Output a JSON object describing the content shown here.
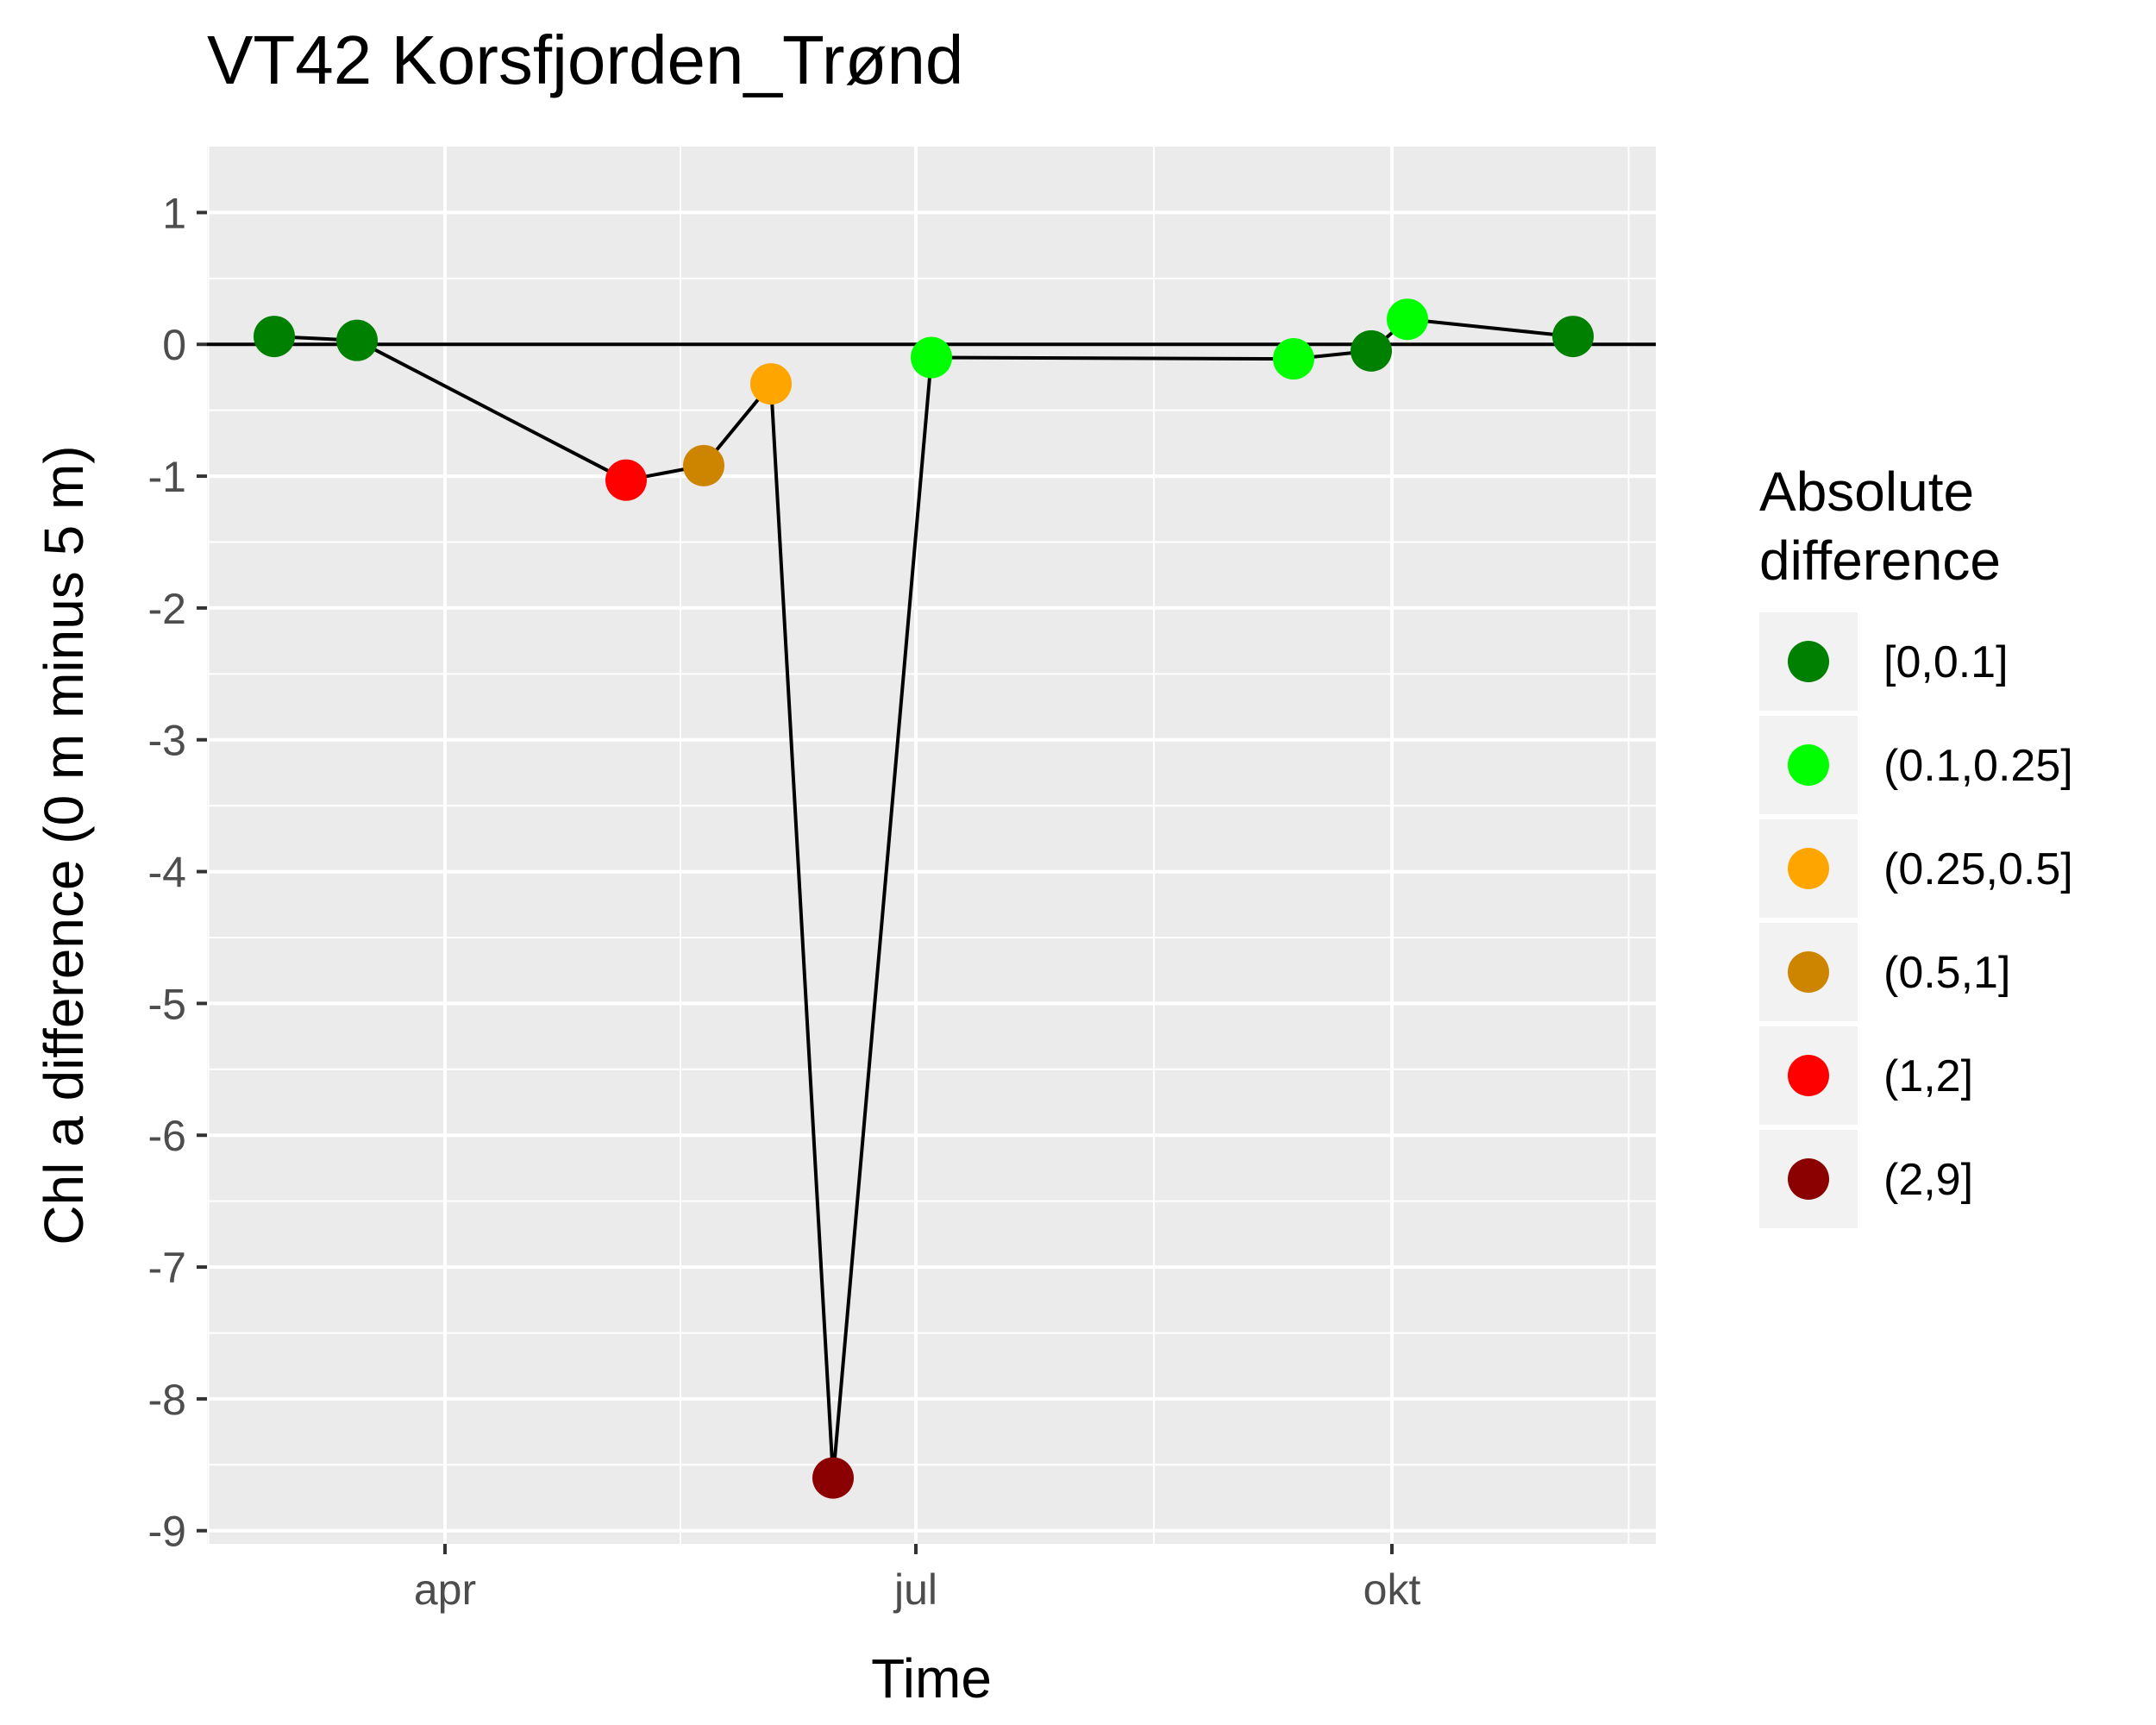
{
  "chart_data": {
    "type": "scatter",
    "title": "VT42 Korsfjorden_Trønd",
    "xlabel": "Time",
    "ylabel": "Chl a difference (0 m minus 5 m)",
    "xlim": [
      "2018-02-14",
      "2018-11-21"
    ],
    "ylim": [
      -9.1,
      1.5
    ],
    "x_ticks": [
      {
        "label": "apr",
        "date": "2018-04-01"
      },
      {
        "label": "jul",
        "date": "2018-07-01"
      },
      {
        "label": "okt",
        "date": "2018-10-01"
      }
    ],
    "y_ticks": [
      1,
      0,
      -1,
      -2,
      -3,
      -4,
      -5,
      -6,
      -7,
      -8,
      -9
    ],
    "grid": true,
    "reference_line": 0,
    "legend": {
      "title": [
        "Absolute",
        "difference"
      ],
      "position": "right",
      "entries": [
        {
          "label": "[0,0.1]",
          "color": "#008000"
        },
        {
          "label": "(0.1,0.25]",
          "color": "#00ff00"
        },
        {
          "label": "(0.25,0.5]",
          "color": "#ffa500"
        },
        {
          "label": "(0.5,1]",
          "color": "#cd8500"
        },
        {
          "label": "(1,2]",
          "color": "#ff0000"
        },
        {
          "label": "(2,9]",
          "color": "#8b0000"
        }
      ]
    },
    "points": [
      {
        "date": "2018-02-27",
        "value": 0.06,
        "class": 0
      },
      {
        "date": "2018-03-15",
        "value": 0.03,
        "class": 0
      },
      {
        "date": "2018-05-06",
        "value": -1.03,
        "class": 4
      },
      {
        "date": "2018-05-21",
        "value": -0.92,
        "class": 3
      },
      {
        "date": "2018-06-03",
        "value": -0.3,
        "class": 2
      },
      {
        "date": "2018-06-15",
        "value": -8.6,
        "class": 5
      },
      {
        "date": "2018-07-04",
        "value": -0.1,
        "class": 1
      },
      {
        "date": "2018-09-12",
        "value": -0.11,
        "class": 1
      },
      {
        "date": "2018-09-27",
        "value": -0.05,
        "class": 0
      },
      {
        "date": "2018-10-04",
        "value": 0.19,
        "class": 1
      },
      {
        "date": "2018-11-05",
        "value": 0.06,
        "class": 0
      }
    ]
  }
}
